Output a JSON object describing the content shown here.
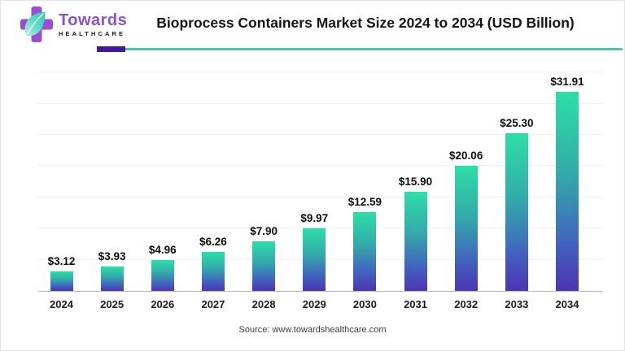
{
  "header": {
    "logo": {
      "brand_top": "Towards",
      "brand_bottom": "HEALTHCARE"
    },
    "title": "Bioprocess Containers Market Size 2024 to 2034 (USD Billion)"
  },
  "chart_data": {
    "type": "bar",
    "title": "Bioprocess Containers Market Size 2024 to 2034 (USD Billion)",
    "categories": [
      "2024",
      "2025",
      "2026",
      "2027",
      "2028",
      "2029",
      "2030",
      "2031",
      "2032",
      "2033",
      "2034"
    ],
    "values": [
      3.12,
      3.93,
      4.96,
      6.26,
      7.9,
      9.97,
      12.59,
      15.9,
      20.06,
      25.3,
      31.91
    ],
    "value_labels": [
      "$3.12",
      "$3.93",
      "$4.96",
      "$6.26",
      "$7.90",
      "$9.97",
      "$12.59",
      "$15.90",
      "$20.06",
      "$25.30",
      "$31.91"
    ],
    "xlabel": "",
    "ylabel": "",
    "unit": "USD Billion",
    "ylim": [
      0,
      35
    ],
    "gridline_step": 5,
    "grid": true,
    "legend": "none",
    "bar_gradient_top": "#2cdfa6",
    "bar_gradient_mid": "#33a9aa",
    "bar_gradient_bottom": "#4c35b2"
  },
  "footer": {
    "source": "Source: www.towardshealthcare.com"
  },
  "colors": {
    "brand_purple": "#8a52d1",
    "divider_purple": "#44189c",
    "divider_teal": "#45c6b1",
    "axis_line": "#b5b5b5",
    "gridline": "#f0f0f0"
  }
}
